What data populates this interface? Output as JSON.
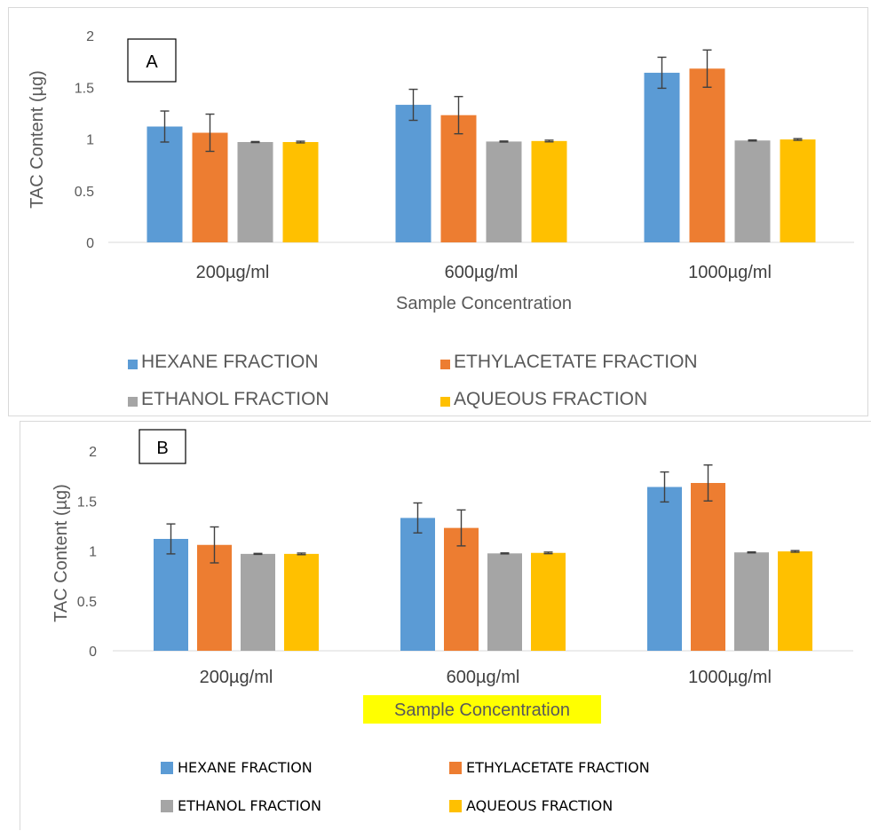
{
  "chart_data": [
    {
      "type": "bar",
      "panel_label": "A",
      "categories": [
        "200µg/ml",
        "600µg/ml",
        "1000µg/ml"
      ],
      "series": [
        {
          "name": "HEXANE FRACTION",
          "color": "#5b9bd5",
          "values": [
            1.12,
            1.33,
            1.64
          ],
          "errors": [
            0.15,
            0.15,
            0.15
          ]
        },
        {
          "name": "ETHYLACETATE FRACTION",
          "color": "#ed7d31",
          "values": [
            1.06,
            1.23,
            1.68
          ],
          "errors": [
            0.18,
            0.18,
            0.18
          ]
        },
        {
          "name": "ETHANOL FRACTION",
          "color": "#a5a5a5",
          "values": [
            0.97,
            0.975,
            0.985
          ],
          "errors": [
            0.005,
            0.005,
            0.005
          ]
        },
        {
          "name": "AQUEOUS FRACTION",
          "color": "#ffc000",
          "values": [
            0.97,
            0.98,
            0.995
          ],
          "errors": [
            0.008,
            0.008,
            0.008
          ]
        }
      ],
      "xlabel": "Sample Concentration",
      "ylabel": "TAC Content (µg)",
      "ylim": [
        0,
        2
      ],
      "yticks": [
        "0",
        "0.5",
        "1",
        "1.5",
        "2"
      ],
      "grid": false,
      "legend_position": "bottom"
    },
    {
      "type": "bar",
      "panel_label": "B",
      "categories": [
        "200µg/ml",
        "600µg/ml",
        "1000µg/ml"
      ],
      "series": [
        {
          "name": "HEXANE FRACTION",
          "color": "#5b9bd5",
          "values": [
            1.12,
            1.33,
            1.64
          ],
          "errors": [
            0.15,
            0.15,
            0.15
          ]
        },
        {
          "name": "ETHYLACETATE FRACTION",
          "color": "#ed7d31",
          "values": [
            1.06,
            1.23,
            1.68
          ],
          "errors": [
            0.18,
            0.18,
            0.18
          ]
        },
        {
          "name": "ETHANOL FRACTION",
          "color": "#a5a5a5",
          "values": [
            0.97,
            0.975,
            0.985
          ],
          "errors": [
            0.005,
            0.005,
            0.005
          ]
        },
        {
          "name": "AQUEOUS FRACTION",
          "color": "#ffc000",
          "values": [
            0.97,
            0.98,
            0.995
          ],
          "errors": [
            0.008,
            0.008,
            0.008
          ]
        }
      ],
      "xlabel": "Sample Concentration",
      "xlabel_highlight": "#ffff00",
      "ylabel": "TAC Content (µg)",
      "ylim": [
        0,
        2
      ],
      "yticks": [
        "0",
        "0.5",
        "1",
        "1.5",
        "2"
      ],
      "grid": false,
      "legend_position": "bottom"
    }
  ]
}
